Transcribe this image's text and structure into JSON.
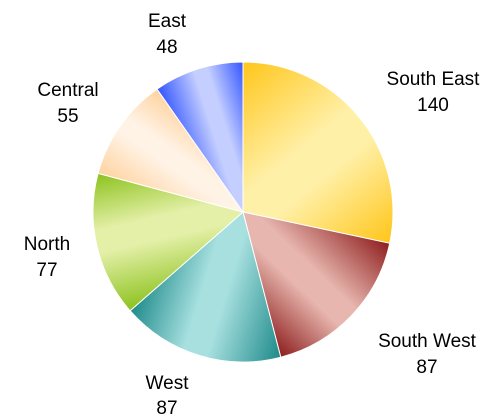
{
  "chart_data": {
    "type": "pie",
    "title": "",
    "start_angle_deg": 0,
    "direction": "clockwise",
    "slices": [
      {
        "label": "South East",
        "value": 140,
        "color": "#FFC61A",
        "highlight": "#FFF0A8"
      },
      {
        "label": "South West",
        "value": 87,
        "color": "#8E1E1E",
        "highlight": "#E7B6AE"
      },
      {
        "label": "West",
        "value": 87,
        "color": "#1E8A8A",
        "highlight": "#A8E0E0"
      },
      {
        "label": "North",
        "value": 77,
        "color": "#8CC21E",
        "highlight": "#E4F0A8"
      },
      {
        "label": "Central",
        "value": 55,
        "color": "#FFD3A0",
        "highlight": "#FFF3E6"
      },
      {
        "label": "East",
        "value": 48,
        "color": "#3355FF",
        "highlight": "#C4CEFF"
      }
    ]
  }
}
